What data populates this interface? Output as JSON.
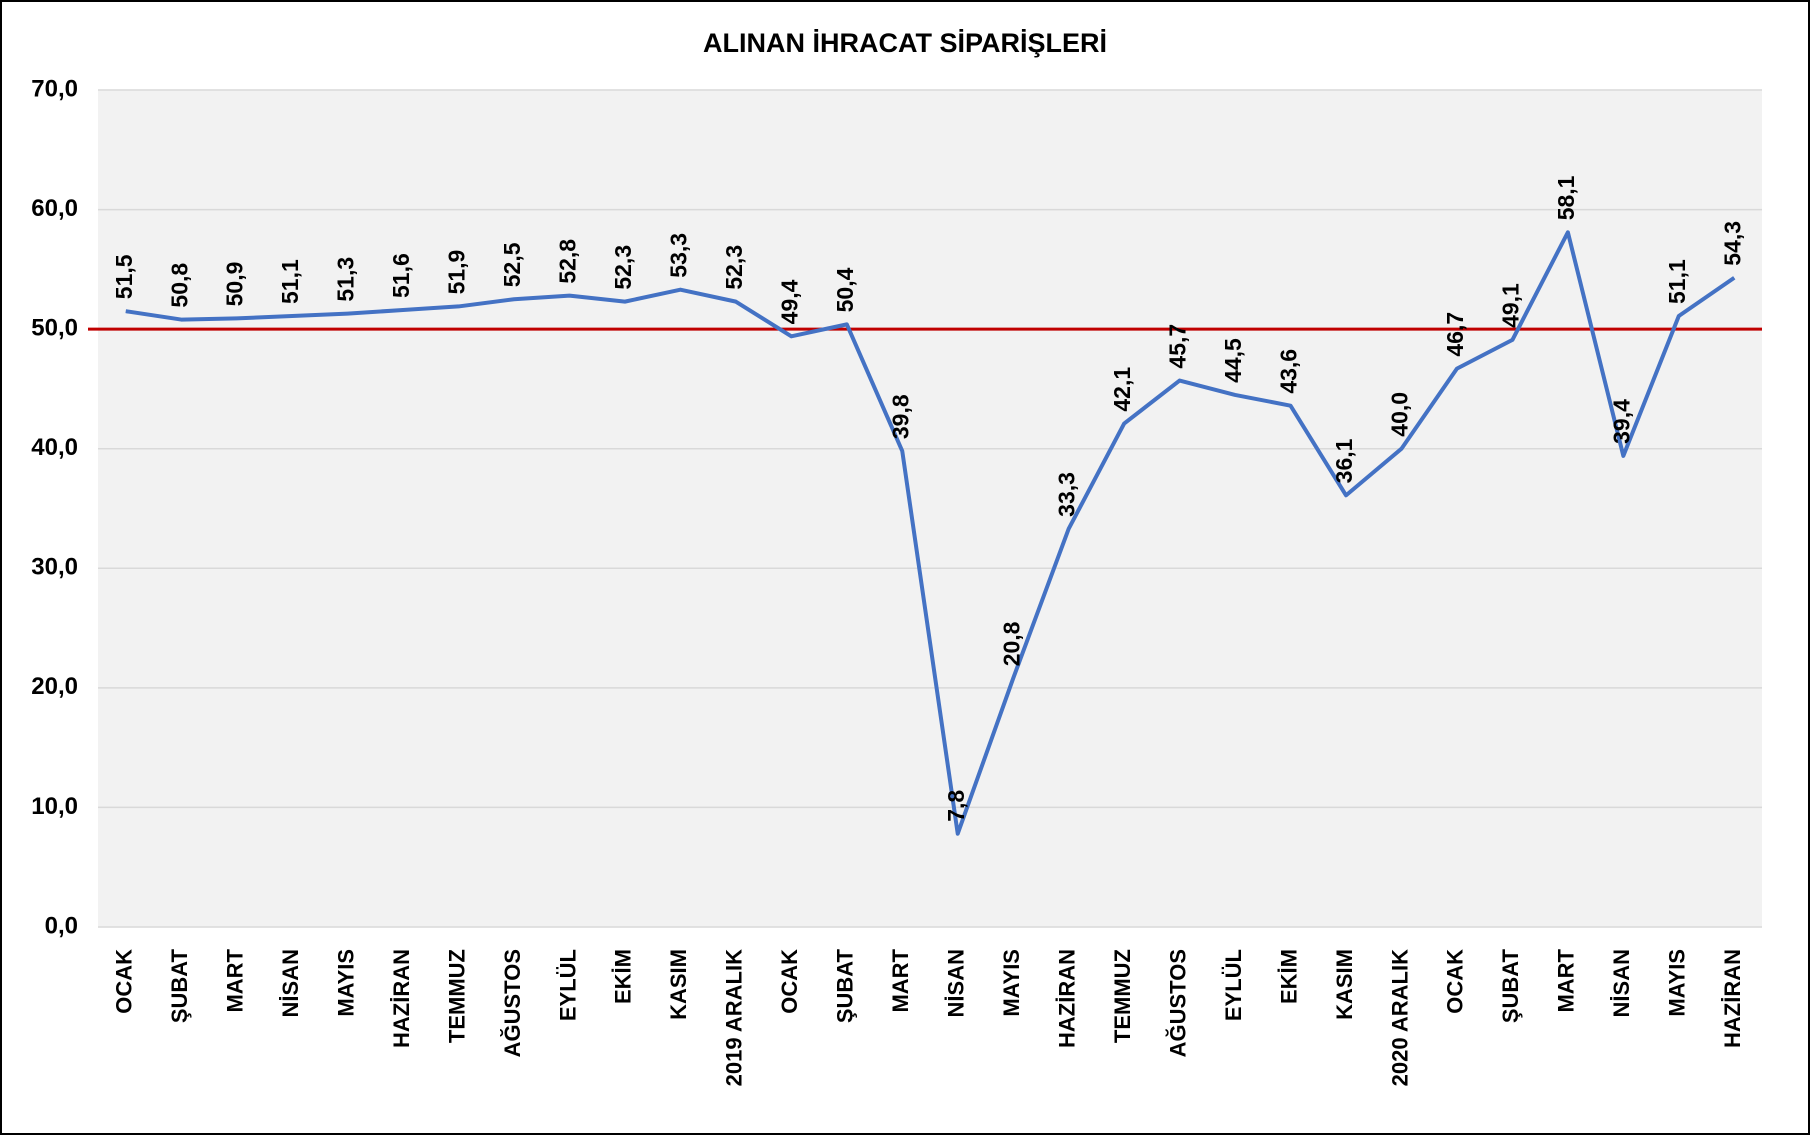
{
  "chart_data": {
    "type": "line",
    "title": "ALINAN İHRACAT SİPARİŞLERİ",
    "categories": [
      "OCAK",
      "ŞUBAT",
      "MART",
      "NİSAN",
      "MAYIS",
      "HAZİRAN",
      "TEMMUZ",
      "AĞUSTOS",
      "EYLÜL",
      "EKİM",
      "KASIM",
      "2019 ARALIK",
      "OCAK",
      "ŞUBAT",
      "MART",
      "NİSAN",
      "MAYIS",
      "HAZİRAN",
      "TEMMUZ",
      "AĞUSTOS",
      "EYLÜL",
      "EKİM",
      "KASIM",
      "2020 ARALIK",
      "OCAK",
      "ŞUBAT",
      "MART",
      "NİSAN",
      "MAYIS",
      "HAZİRAN"
    ],
    "series": [
      {
        "color": "#4472c4",
        "values": [
          51.5,
          50.8,
          50.9,
          51.1,
          51.3,
          51.6,
          51.9,
          52.5,
          52.8,
          52.3,
          53.3,
          52.3,
          49.4,
          50.4,
          39.8,
          7.8,
          20.8,
          33.3,
          42.1,
          45.7,
          44.5,
          43.6,
          36.1,
          40.0,
          46.7,
          49.1,
          58.1,
          39.4,
          51.1,
          54.3
        ],
        "value_labels": [
          "51,5",
          "50,8",
          "50,9",
          "51,1",
          "51,3",
          "51,6",
          "51,9",
          "52,5",
          "52,8",
          "52,3",
          "53,3",
          "52,3",
          "49,4",
          "50,4",
          "39,8",
          "7,8",
          "20,8",
          "33,3",
          "42,1",
          "45,7",
          "44,5",
          "43,6",
          "36,1",
          "40,0",
          "46,7",
          "49,1",
          "58,1",
          "39,4",
          "51,1",
          "54,3"
        ]
      }
    ],
    "ylim": [
      0,
      70
    ],
    "yticks": [
      {
        "value": 0,
        "label": "0,0"
      },
      {
        "value": 10,
        "label": "10,0"
      },
      {
        "value": 20,
        "label": "20,0"
      },
      {
        "value": 30,
        "label": "30,0"
      },
      {
        "value": 40,
        "label": "40,0"
      },
      {
        "value": 50,
        "label": "50,0"
      },
      {
        "value": 60,
        "label": "60,0"
      },
      {
        "value": 70,
        "label": "70,0"
      }
    ],
    "grid": true,
    "reference_line": {
      "value": 50,
      "color": "#c00000"
    }
  }
}
